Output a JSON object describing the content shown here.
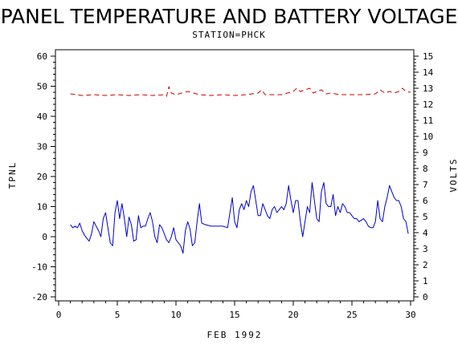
{
  "chart_data": {
    "type": "line",
    "title": "PANEL TEMPERATURE AND BATTERY VOLTAGE",
    "subtitle": "STATION=PHCK",
    "xlabel": "FEB 1992",
    "ylabel_left": "TPNL",
    "ylabel_right": "VOLTS",
    "xlim": [
      0,
      30
    ],
    "ylim_left": [
      -20,
      60
    ],
    "ylim_right": [
      0,
      15
    ],
    "x_ticks": [
      0,
      5,
      10,
      15,
      20,
      25,
      30
    ],
    "y_left_ticks": [
      -20,
      -10,
      0,
      10,
      20,
      30,
      40,
      50,
      60
    ],
    "y_right_ticks": [
      0,
      1,
      2,
      3,
      4,
      5,
      6,
      7,
      8,
      9,
      10,
      11,
      12,
      13,
      14,
      15
    ],
    "grid": false,
    "series": [
      {
        "name": "TPNL",
        "axis": "left",
        "color": "#0000cc",
        "dash": "solid",
        "points": [
          [
            1.0,
            4.0
          ],
          [
            1.2,
            3.0
          ],
          [
            1.4,
            3.5
          ],
          [
            1.6,
            3.0
          ],
          [
            1.8,
            4.5
          ],
          [
            2.0,
            2.0
          ],
          [
            2.2,
            0.5
          ],
          [
            2.4,
            -0.5
          ],
          [
            2.6,
            -1.5
          ],
          [
            2.8,
            1.0
          ],
          [
            3.0,
            5.0
          ],
          [
            3.2,
            3.5
          ],
          [
            3.4,
            2.0
          ],
          [
            3.6,
            0.0
          ],
          [
            3.8,
            6.0
          ],
          [
            4.0,
            8.0
          ],
          [
            4.2,
            3.0
          ],
          [
            4.4,
            -2.0
          ],
          [
            4.6,
            -3.0
          ],
          [
            4.8,
            8.0
          ],
          [
            5.0,
            12.0
          ],
          [
            5.2,
            6.0
          ],
          [
            5.4,
            11.0
          ],
          [
            5.6,
            6.0
          ],
          [
            5.8,
            0.0
          ],
          [
            6.0,
            6.5
          ],
          [
            6.2,
            4.0
          ],
          [
            6.4,
            -1.5
          ],
          [
            6.6,
            -1.0
          ],
          [
            6.8,
            7.0
          ],
          [
            7.0,
            3.0
          ],
          [
            7.2,
            3.5
          ],
          [
            7.4,
            3.5
          ],
          [
            7.6,
            6.0
          ],
          [
            7.8,
            8.0
          ],
          [
            8.0,
            5.0
          ],
          [
            8.2,
            0.0
          ],
          [
            8.4,
            -2.0
          ],
          [
            8.6,
            4.0
          ],
          [
            8.8,
            3.0
          ],
          [
            9.0,
            1.0
          ],
          [
            9.2,
            -1.0
          ],
          [
            9.4,
            -2.0
          ],
          [
            9.6,
            0.0
          ],
          [
            9.8,
            3.0
          ],
          [
            10.0,
            -1.0
          ],
          [
            10.2,
            -2.0
          ],
          [
            10.4,
            -3.0
          ],
          [
            10.6,
            -5.5
          ],
          [
            10.8,
            2.0
          ],
          [
            11.0,
            5.0
          ],
          [
            11.2,
            2.5
          ],
          [
            11.4,
            -3.0
          ],
          [
            11.6,
            -2.0
          ],
          [
            11.8,
            5.0
          ],
          [
            12.0,
            11.0
          ],
          [
            12.2,
            4.5
          ],
          [
            12.5,
            4.0
          ],
          [
            13.0,
            3.5
          ],
          [
            13.5,
            3.5
          ],
          [
            14.0,
            3.5
          ],
          [
            14.4,
            3.0
          ],
          [
            14.6,
            8.0
          ],
          [
            14.8,
            13.0
          ],
          [
            15.0,
            5.0
          ],
          [
            15.2,
            3.0
          ],
          [
            15.4,
            9.0
          ],
          [
            15.6,
            11.0
          ],
          [
            15.8,
            9.0
          ],
          [
            16.0,
            12.0
          ],
          [
            16.2,
            10.0
          ],
          [
            16.4,
            15.0
          ],
          [
            16.6,
            17.0
          ],
          [
            16.8,
            12.0
          ],
          [
            17.0,
            7.0
          ],
          [
            17.2,
            7.0
          ],
          [
            17.4,
            11.0
          ],
          [
            17.6,
            9.0
          ],
          [
            17.8,
            7.0
          ],
          [
            18.0,
            6.0
          ],
          [
            18.2,
            9.0
          ],
          [
            18.4,
            10.0
          ],
          [
            18.6,
            8.0
          ],
          [
            18.8,
            9.0
          ],
          [
            19.0,
            10.0
          ],
          [
            19.2,
            9.0
          ],
          [
            19.4,
            11.0
          ],
          [
            19.6,
            17.0
          ],
          [
            19.8,
            12.0
          ],
          [
            20.0,
            8.0
          ],
          [
            20.2,
            12.0
          ],
          [
            20.4,
            12.0
          ],
          [
            20.6,
            5.0
          ],
          [
            20.8,
            0.0
          ],
          [
            21.0,
            5.0
          ],
          [
            21.2,
            10.0
          ],
          [
            21.4,
            8.0
          ],
          [
            21.6,
            18.0
          ],
          [
            21.8,
            12.0
          ],
          [
            22.0,
            6.0
          ],
          [
            22.2,
            5.0
          ],
          [
            22.4,
            15.0
          ],
          [
            22.6,
            18.0
          ],
          [
            22.8,
            11.0
          ],
          [
            23.0,
            10.0
          ],
          [
            23.2,
            10.0
          ],
          [
            23.4,
            14.0
          ],
          [
            23.6,
            7.0
          ],
          [
            23.8,
            10.0
          ],
          [
            24.0,
            8.0
          ],
          [
            24.2,
            11.0
          ],
          [
            24.4,
            10.0
          ],
          [
            24.6,
            8.0
          ],
          [
            24.8,
            8.0
          ],
          [
            25.0,
            7.0
          ],
          [
            25.2,
            6.0
          ],
          [
            25.4,
            6.0
          ],
          [
            25.6,
            5.0
          ],
          [
            25.8,
            5.5
          ],
          [
            26.0,
            6.0
          ],
          [
            26.2,
            5.0
          ],
          [
            26.4,
            3.5
          ],
          [
            26.6,
            3.0
          ],
          [
            26.8,
            3.0
          ],
          [
            27.0,
            5.0
          ],
          [
            27.2,
            12.0
          ],
          [
            27.4,
            6.0
          ],
          [
            27.6,
            5.0
          ],
          [
            27.8,
            10.0
          ],
          [
            28.0,
            13.0
          ],
          [
            28.2,
            17.0
          ],
          [
            28.4,
            15.0
          ],
          [
            28.6,
            13.0
          ],
          [
            28.8,
            12.0
          ],
          [
            29.0,
            12.0
          ],
          [
            29.2,
            10.0
          ],
          [
            29.4,
            6.0
          ],
          [
            29.6,
            5.0
          ],
          [
            29.8,
            1.0
          ]
        ]
      },
      {
        "name": "VOLTS",
        "axis": "right",
        "color": "#cc0000",
        "dash": "dashed",
        "points": [
          [
            1.0,
            12.65
          ],
          [
            2.0,
            12.55
          ],
          [
            3.0,
            12.6
          ],
          [
            4.0,
            12.55
          ],
          [
            5.0,
            12.6
          ],
          [
            6.0,
            12.55
          ],
          [
            7.0,
            12.6
          ],
          [
            8.0,
            12.55
          ],
          [
            9.0,
            12.6
          ],
          [
            9.2,
            12.5
          ],
          [
            9.4,
            13.1
          ],
          [
            9.6,
            12.7
          ],
          [
            10.0,
            12.6
          ],
          [
            11.0,
            12.8
          ],
          [
            12.0,
            12.6
          ],
          [
            13.0,
            12.55
          ],
          [
            14.0,
            12.6
          ],
          [
            15.0,
            12.55
          ],
          [
            16.0,
            12.6
          ],
          [
            17.0,
            12.7
          ],
          [
            17.3,
            12.9
          ],
          [
            17.6,
            12.6
          ],
          [
            18.0,
            12.6
          ],
          [
            19.0,
            12.6
          ],
          [
            19.5,
            12.7
          ],
          [
            20.0,
            12.8
          ],
          [
            20.3,
            13.0
          ],
          [
            20.6,
            12.8
          ],
          [
            21.0,
            12.9
          ],
          [
            21.4,
            13.0
          ],
          [
            21.7,
            12.7
          ],
          [
            22.0,
            12.8
          ],
          [
            22.4,
            12.9
          ],
          [
            22.8,
            12.65
          ],
          [
            23.2,
            12.7
          ],
          [
            24.0,
            12.6
          ],
          [
            25.0,
            12.6
          ],
          [
            26.0,
            12.6
          ],
          [
            27.0,
            12.65
          ],
          [
            27.4,
            12.9
          ],
          [
            27.8,
            12.7
          ],
          [
            28.2,
            12.8
          ],
          [
            28.6,
            12.7
          ],
          [
            29.0,
            12.8
          ],
          [
            29.3,
            13.0
          ],
          [
            29.6,
            12.8
          ],
          [
            30.0,
            12.75
          ]
        ]
      }
    ]
  }
}
